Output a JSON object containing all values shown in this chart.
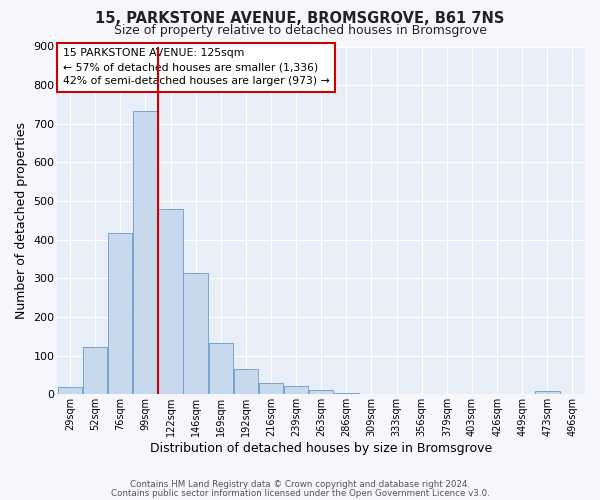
{
  "title": "15, PARKSTONE AVENUE, BROMSGROVE, B61 7NS",
  "subtitle": "Size of property relative to detached houses in Bromsgrove",
  "xlabel": "Distribution of detached houses by size in Bromsgrove",
  "ylabel": "Number of detached properties",
  "bar_color": "#c8d9ee",
  "bar_edge_color": "#6699cc",
  "background_color": "#e8eef7",
  "grid_color": "#ffffff",
  "fig_bg_color": "#f5f7fc",
  "categories": [
    "29sqm",
    "52sqm",
    "76sqm",
    "99sqm",
    "122sqm",
    "146sqm",
    "169sqm",
    "192sqm",
    "216sqm",
    "239sqm",
    "263sqm",
    "286sqm",
    "309sqm",
    "333sqm",
    "356sqm",
    "379sqm",
    "403sqm",
    "426sqm",
    "449sqm",
    "473sqm",
    "496sqm"
  ],
  "values": [
    20,
    122,
    418,
    733,
    480,
    315,
    133,
    65,
    28,
    22,
    10,
    3,
    0,
    0,
    0,
    0,
    0,
    0,
    0,
    8,
    0
  ],
  "ylim": [
    0,
    900
  ],
  "yticks": [
    0,
    100,
    200,
    300,
    400,
    500,
    600,
    700,
    800,
    900
  ],
  "vline_x": 4.0,
  "vline_color": "#cc0000",
  "annotation_title": "15 PARKSTONE AVENUE: 125sqm",
  "annotation_line1": "← 57% of detached houses are smaller (1,336)",
  "annotation_line2": "42% of semi-detached houses are larger (973) →",
  "annotation_box_color": "#ffffff",
  "annotation_box_edge": "#cc0000",
  "footer1": "Contains HM Land Registry data © Crown copyright and database right 2024.",
  "footer2": "Contains public sector information licensed under the Open Government Licence v3.0."
}
